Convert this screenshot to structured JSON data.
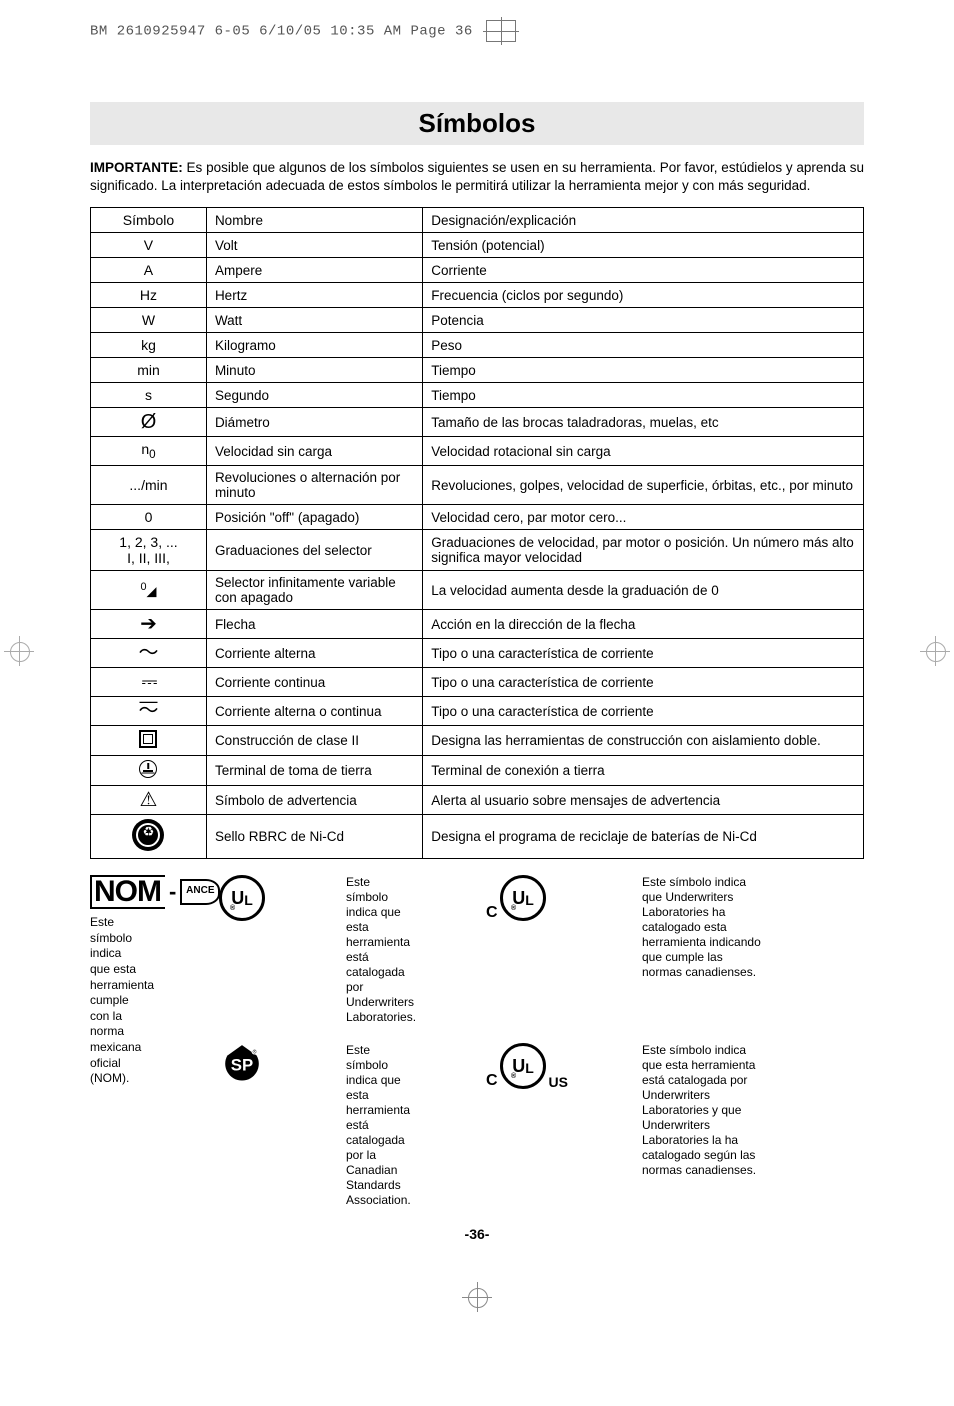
{
  "header_line": "BM 2610925947 6-05  6/10/05  10:35 AM  Page 36",
  "title": "Símbolos",
  "intro_bold": "IMPORTANTE:",
  "intro_rest": "  Es posible que algunos de los símbolos siguientes se usen en su herramienta.  Por favor, estúdielos y aprenda su significado.  La interpretación adecuada de estos símbolos le permitirá utilizar la herramienta mejor y con más seguridad.",
  "table": {
    "headers": [
      "Símbolo",
      "Nombre",
      "Designación/explicación"
    ],
    "rows": [
      {
        "sym_text": "V",
        "name": "Volt",
        "desc": "Tensión (potencial)"
      },
      {
        "sym_text": "A",
        "name": "Ampere",
        "desc": "Corriente"
      },
      {
        "sym_text": "Hz",
        "name": "Hertz",
        "desc": "Frecuencia (ciclos por segundo)"
      },
      {
        "sym_text": "W",
        "name": "Watt",
        "desc": "Potencia"
      },
      {
        "sym_text": "kg",
        "name": "Kilogramo",
        "desc": "Peso"
      },
      {
        "sym_text": "min",
        "name": "Minuto",
        "desc": "Tiempo"
      },
      {
        "sym_text": "s",
        "name": "Segundo",
        "desc": "Tiempo"
      },
      {
        "sym_glyph": "diameter",
        "name": "Diámetro",
        "desc": "Tamaño de las brocas taladradoras, muelas, etc"
      },
      {
        "sym_html": "n<sub>0</sub>",
        "name": "Velocidad sin carga",
        "desc": "Velocidad rotacional sin carga"
      },
      {
        "sym_text": ".../min",
        "name": "Revoluciones o alternación por minuto",
        "desc": "Revoluciones, golpes, velocidad de superficie, órbitas, etc., por minuto"
      },
      {
        "sym_text": "0",
        "name": "Posición \"off\" (apagado)",
        "desc": "Velocidad cero, par motor cero..."
      },
      {
        "sym_html": "1, 2, 3, ...<br>I, II, III,",
        "name": "Graduaciones del selector",
        "desc": "Graduaciones de velocidad, par motor o posición.  Un número más alto significa mayor velocidad"
      },
      {
        "sym_glyph": "dial",
        "name": "Selector infinitamente variable con apagado",
        "desc": "La velocidad aumenta desde la graduación de 0"
      },
      {
        "sym_glyph": "arrow",
        "name": "Flecha",
        "desc": "Acción en la dirección de la flecha"
      },
      {
        "sym_glyph": "ac",
        "name": "Corriente alterna",
        "desc": "Tipo o una característica de corriente"
      },
      {
        "sym_glyph": "dc",
        "name": "Corriente continua",
        "desc": "Tipo o una característica de corriente"
      },
      {
        "sym_glyph": "acdc",
        "name": "Corriente alterna o continua",
        "desc": "Tipo o una característica de corriente"
      },
      {
        "sym_glyph": "class2",
        "name": "Construcción de clase II",
        "desc": "Designa las herramientas de construcción con aislamiento doble."
      },
      {
        "sym_glyph": "earth",
        "name": "Terminal de toma de tierra",
        "desc": "Terminal de conexión a tierra"
      },
      {
        "sym_glyph": "warn",
        "name": "Símbolo de advertencia",
        "desc": "Alerta al usuario sobre mensajes de advertencia"
      },
      {
        "sym_glyph": "recycle",
        "name": "Sello RBRC de Ni-Cd",
        "desc": "Designa el programa de reciclaje de baterías de Ni-Cd"
      }
    ]
  },
  "logos": {
    "ul": "Este símbolo indica que esta herramienta está catalogada por Underwriters Laboratories.",
    "csa": "Este símbolo indica que esta herramienta está catalogada por la Canadian Standards Association.",
    "cul": "Este símbolo indica que Underwriters Laboratories ha catalogado esta herramienta indicando que cumple las normas canadienses.",
    "culus": "Este símbolo indica que esta herramienta está catalogada por Underwriters Laboratories y que Underwriters Laboratories la ha catalogado según las normas canadienses.",
    "nom": "Este símbolo indica que esta herramienta cumple con la norma mexicana oficial (NOM).",
    "nom_label": "NOM",
    "nom_leaf": "ANCE"
  },
  "page_number": "-36-"
}
